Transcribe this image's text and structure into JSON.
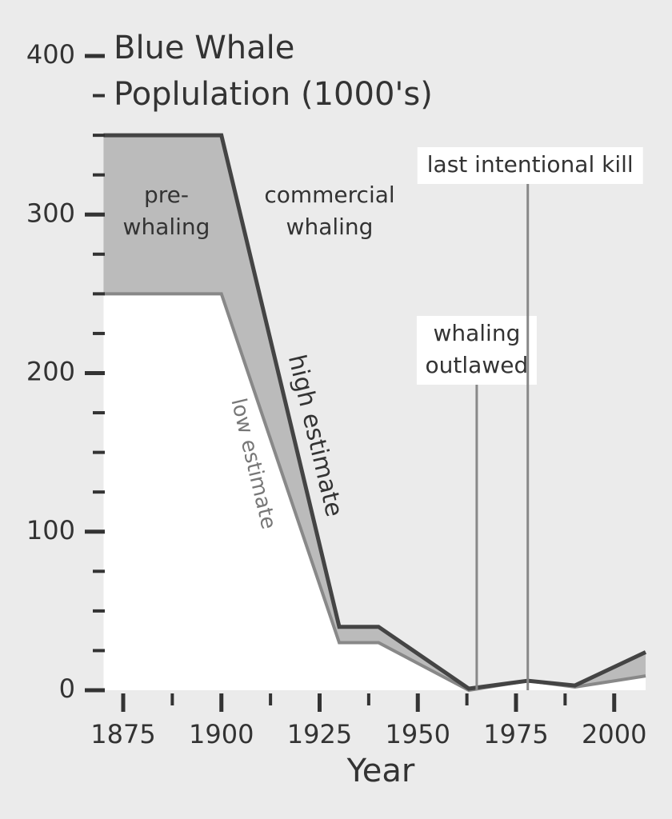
{
  "chart_data": {
    "type": "area",
    "title": [
      "Blue Whale",
      "Poplulation (1000's)"
    ],
    "x_label": "Year",
    "x": [
      1870,
      1900,
      1930,
      1940,
      1963,
      1978,
      1990,
      2008
    ],
    "series": [
      {
        "name": "high estimate",
        "color": "#444444",
        "values": [
          350,
          350,
          40,
          40,
          1,
          6,
          3,
          24
        ]
      },
      {
        "name": "low estimate",
        "color": "#888888",
        "values": [
          250,
          250,
          30,
          30,
          0,
          6,
          2,
          9
        ]
      }
    ],
    "band_color": "#bbbbbb",
    "xlim": [
      1870,
      2008
    ],
    "ylim": [
      0,
      400
    ],
    "xticks": [
      1875,
      1900,
      1925,
      1950,
      1975,
      2000
    ],
    "x_minor_ticks": [
      1887.5,
      1912.5,
      1937.5,
      1962.5,
      1987.5
    ],
    "yticks": [
      0,
      100,
      200,
      300,
      400
    ],
    "y_minor_ticks": [
      25,
      50,
      75,
      125,
      150,
      175,
      225,
      250,
      275,
      325,
      350,
      375
    ],
    "annotations": [
      {
        "text": [
          "whaling",
          "outlawed"
        ],
        "x": 1965
      },
      {
        "text": [
          "last intentional kill"
        ],
        "x": 1978
      }
    ],
    "region_labels": [
      {
        "text": [
          "pre-",
          "whaling"
        ]
      },
      {
        "text": [
          "commercial",
          "whaling"
        ]
      }
    ]
  }
}
